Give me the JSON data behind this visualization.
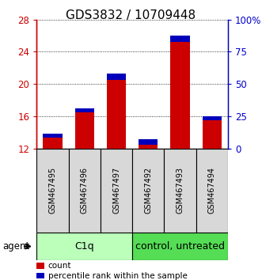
{
  "title": "GDS3832 / 10709448",
  "samples": [
    "GSM467495",
    "GSM467496",
    "GSM467497",
    "GSM467492",
    "GSM467493",
    "GSM467494"
  ],
  "red_values": [
    13.3,
    16.5,
    20.5,
    12.5,
    25.2,
    15.5
  ],
  "blue_values": [
    0.5,
    0.5,
    0.8,
    0.6,
    0.8,
    0.5
  ],
  "base": 12.0,
  "ylim_left": [
    12,
    28
  ],
  "yticks_left": [
    12,
    16,
    20,
    24,
    28
  ],
  "ytick_labels_left": [
    "12",
    "16",
    "20",
    "24",
    "28"
  ],
  "yticks_right_pct": [
    0,
    25,
    50,
    75,
    100
  ],
  "ytick_labels_right": [
    "0",
    "25",
    "50",
    "75",
    "100%"
  ],
  "groups": [
    {
      "label": "C1q",
      "indices": [
        0,
        1,
        2
      ],
      "color": "#bbffbb"
    },
    {
      "label": "control, untreated",
      "indices": [
        3,
        4,
        5
      ],
      "color": "#55dd55"
    }
  ],
  "agent_label": "agent",
  "legend_items": [
    {
      "label": "count",
      "color": "#cc0000"
    },
    {
      "label": "percentile rank within the sample",
      "color": "#0000bb"
    }
  ],
  "bar_color_red": "#cc0000",
  "bar_color_blue": "#0000bb",
  "title_fontsize": 11,
  "axis_color_left": "#cc0000",
  "axis_color_right": "#0000cc",
  "sample_label_fontsize": 7,
  "bar_width": 0.6,
  "grid_color": "#000000",
  "cell_bg": "#d8d8d8"
}
